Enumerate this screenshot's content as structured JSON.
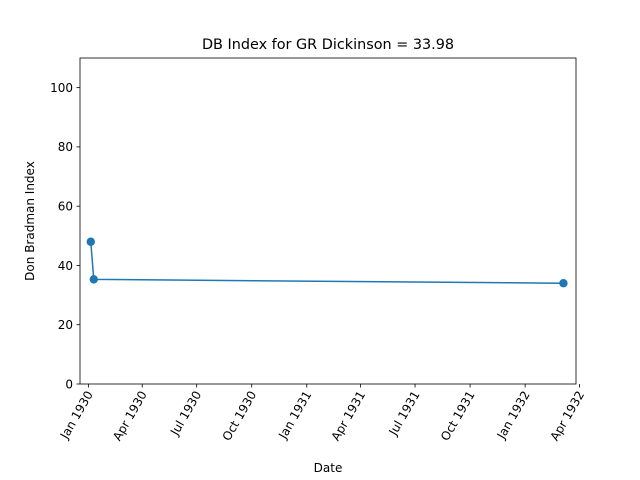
{
  "chart_data": {
    "type": "line",
    "title": "DB Index for GR Dickinson = 33.98",
    "xlabel": "Date",
    "ylabel": "Don Bradman Index",
    "ylim": [
      0,
      110
    ],
    "xlim": [
      "1929-12-18",
      "1932-03-26"
    ],
    "grid": false,
    "legend": "none",
    "series_color": "#1f77b4",
    "x_ticks": [
      {
        "date": "1930-01-01",
        "label": "Jan 1930"
      },
      {
        "date": "1930-04-01",
        "label": "Apr 1930"
      },
      {
        "date": "1930-07-01",
        "label": "Jul 1930"
      },
      {
        "date": "1930-10-01",
        "label": "Oct 1930"
      },
      {
        "date": "1931-01-01",
        "label": "Jan 1931"
      },
      {
        "date": "1931-04-01",
        "label": "Apr 1931"
      },
      {
        "date": "1931-07-01",
        "label": "Jul 1931"
      },
      {
        "date": "1931-10-01",
        "label": "Oct 1931"
      },
      {
        "date": "1932-01-01",
        "label": "Jan 1932"
      },
      {
        "date": "1932-04-01",
        "label": "Apr 1932"
      }
    ],
    "y_ticks": [
      0,
      20,
      40,
      60,
      80,
      100
    ],
    "series": [
      {
        "points": [
          {
            "x": "1930-01-05",
            "y": 48.0
          },
          {
            "x": "1930-01-10",
            "y": 35.3
          },
          {
            "x": "1932-03-05",
            "y": 34.0
          }
        ]
      }
    ]
  }
}
